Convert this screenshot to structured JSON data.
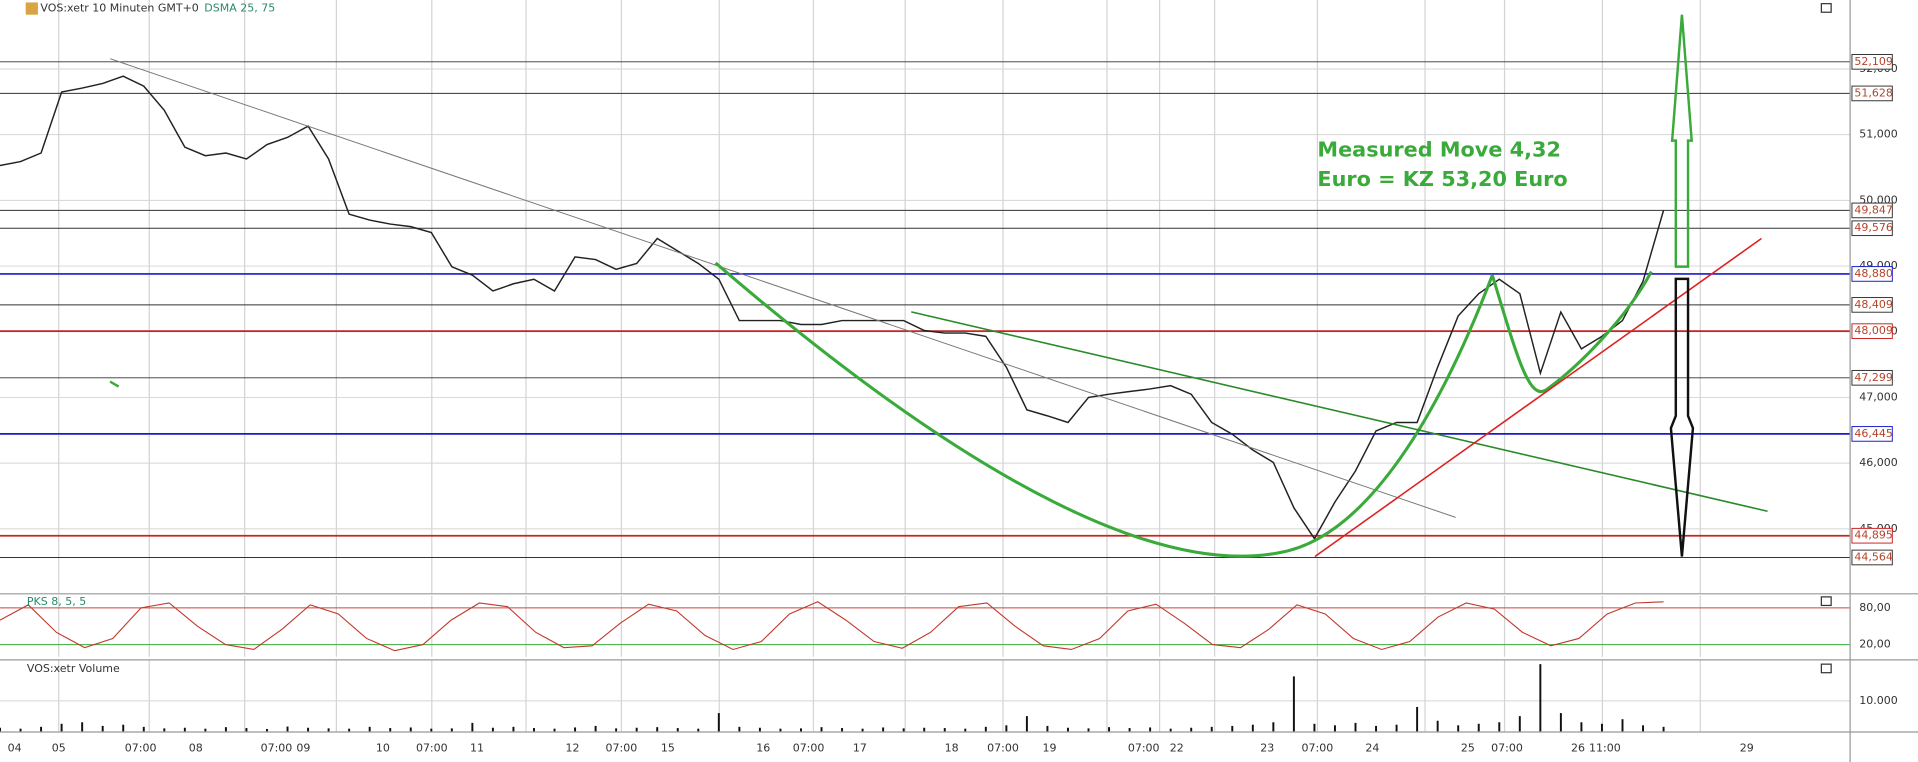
{
  "chart_data": [
    {
      "type": "line",
      "title": "VOS:xetr 10 Minuten GMT+0",
      "subtitle": "DSMA 25, 75",
      "color": "#222222",
      "values": [
        50.53,
        50.59,
        50.72,
        51.65,
        51.71,
        51.78,
        51.89,
        51.74,
        51.37,
        50.81,
        50.68,
        50.72,
        50.63,
        50.85,
        50.96,
        51.13,
        50.63,
        49.79,
        49.7,
        49.64,
        49.6,
        49.51,
        48.99,
        48.86,
        48.62,
        48.73,
        48.8,
        48.62,
        49.14,
        49.1,
        48.95,
        49.04,
        49.42,
        49.23,
        49.04,
        48.8,
        48.17,
        48.17,
        48.17,
        48.11,
        48.11,
        48.17,
        48.17,
        48.17,
        48.17,
        48.02,
        47.98,
        47.98,
        47.93,
        47.46,
        46.81,
        46.72,
        46.62,
        47.0,
        47.05,
        47.09,
        47.13,
        47.18,
        47.05,
        46.62,
        46.44,
        46.2,
        46.01,
        45.32,
        44.85,
        45.41,
        45.88,
        46.49,
        46.62,
        46.62,
        47.46,
        48.24,
        48.58,
        48.8,
        48.58,
        47.37,
        48.3,
        47.74,
        47.93,
        48.17,
        48.77,
        49.85
      ],
      "ylim": [
        44.02,
        53.05
      ],
      "yticks": [
        {
          "value": 45,
          "label": "45,000"
        },
        {
          "value": 46,
          "label": "46,000"
        },
        {
          "value": 47,
          "label": "47,000"
        },
        {
          "value": 48,
          "label": "48,000"
        },
        {
          "value": 49,
          "label": "49,000"
        },
        {
          "value": 50,
          "label": "50,000"
        },
        {
          "value": 51,
          "label": "51,000"
        },
        {
          "value": 52,
          "label": "52,000"
        }
      ],
      "levels": {
        "values": [
          52.109,
          51.628,
          49.847,
          49.576,
          48.88,
          48.409,
          48.009,
          47.299,
          46.445,
          44.895,
          44.564
        ],
        "value_labels": [
          "52,109",
          "51,628",
          "49,847",
          "49,576",
          "48,880",
          "48,409",
          "48,009",
          "47,299",
          "46,445",
          "44,895",
          "44,564"
        ],
        "colors": [
          "#333333",
          "#333333",
          "#333333",
          "#333333",
          "#1a1acc",
          "#333333",
          "#cc2222",
          "#333333",
          "#1a1acc",
          "#cc2222",
          "#333333"
        ]
      },
      "annotations": [
        "Measured Move 4,32",
        "Euro = KZ 53,20 Euro"
      ]
    },
    {
      "type": "line",
      "title": "PKS 8, 5, 5",
      "color": "#c0392b",
      "values": [
        60,
        85,
        40,
        15,
        30,
        80,
        88,
        50,
        20,
        12,
        45,
        85,
        70,
        30,
        10,
        20,
        60,
        88,
        82,
        40,
        15,
        18,
        55,
        86,
        75,
        35,
        12,
        25,
        70,
        90,
        60,
        25,
        14,
        40,
        82,
        88,
        50,
        18,
        12,
        30,
        75,
        86,
        55,
        20,
        15,
        45,
        85,
        70,
        30,
        12,
        25,
        65,
        88,
        78,
        40,
        18,
        30,
        70,
        88,
        90
      ],
      "ylim": [
        0,
        100
      ],
      "yticks": [
        {
          "value": 20,
          "label": "20,00"
        },
        {
          "value": 80,
          "label": "80,00"
        }
      ]
    },
    {
      "type": "bar",
      "title": "VOS:xetr Volume",
      "color": "#111111",
      "values": [
        1200,
        900,
        1500,
        2500,
        3000,
        1800,
        2200,
        1500,
        1000,
        1200,
        900,
        1400,
        1100,
        800,
        1600,
        1200,
        1000,
        900,
        1500,
        1100,
        1300,
        900,
        1000,
        2800,
        1200,
        1500,
        1100,
        900,
        1300,
        1800,
        1000,
        1200,
        1400,
        1100,
        900,
        6000,
        1500,
        1200,
        900,
        1000,
        1400,
        1100,
        900,
        1300,
        1000,
        1200,
        1100,
        900,
        1500,
        2000,
        5000,
        1800,
        1200,
        1000,
        1400,
        1100,
        1300,
        900,
        1200,
        1500,
        1800,
        2200,
        3000,
        18000,
        2500,
        2000,
        2800,
        1800,
        2200,
        8000,
        3500,
        2000,
        2500,
        3000,
        5000,
        22000,
        6000,
        3000,
        2500,
        4000,
        2000,
        1500
      ],
      "ylim": [
        0,
        23200
      ],
      "yticks": [
        {
          "value": 10000,
          "label": "10.000"
        }
      ],
      "time_labels": [
        "04",
        "05",
        "07:00",
        "08",
        "07:00",
        "09",
        "10",
        "07:00",
        "11",
        "12",
        "07:00",
        "15",
        "16",
        "07:00",
        "17",
        "18",
        "07:00",
        "19",
        "07:00",
        "22",
        "23",
        "07:00",
        "24",
        "25",
        "07:00",
        "26",
        "11:00",
        "29"
      ]
    }
  ]
}
